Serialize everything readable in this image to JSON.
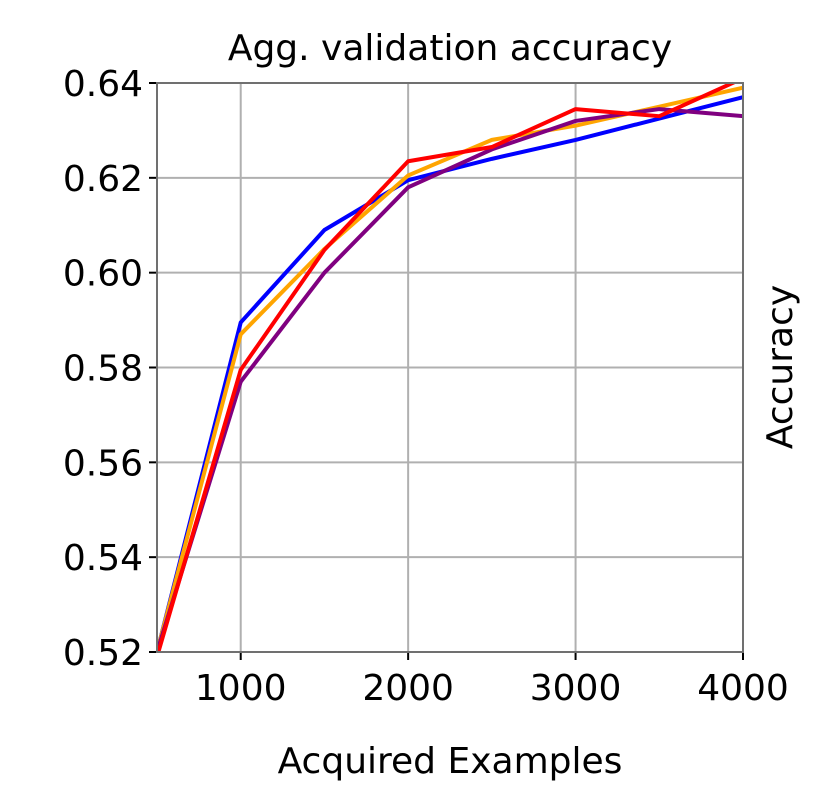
{
  "chart_data": {
    "type": "line",
    "title": "Agg. validation accuracy",
    "xlabel": "Acquired Examples",
    "ylabel": "Accuracy",
    "x": [
      500,
      1000,
      1500,
      2000,
      2500,
      3000,
      3500,
      4000
    ],
    "series": [
      {
        "color": "#0000ff",
        "values": [
          0.52,
          0.5895,
          0.609,
          0.6195,
          0.624,
          0.628,
          0.6325,
          0.637
        ]
      },
      {
        "color": "#ffa500",
        "values": [
          0.52,
          0.587,
          0.605,
          0.6205,
          0.628,
          0.631,
          0.635,
          0.639
        ]
      },
      {
        "color": "#800080",
        "values": [
          0.52,
          0.577,
          0.6,
          0.618,
          0.626,
          0.632,
          0.6345,
          0.633
        ]
      },
      {
        "color": "#ff0000",
        "values": [
          0.519,
          0.5795,
          0.6048,
          0.6235,
          0.6265,
          0.6345,
          0.633,
          0.641
        ]
      }
    ],
    "xlim": [
      500,
      4000
    ],
    "ylim": [
      0.52,
      0.64
    ],
    "xticks": [
      1000,
      2000,
      3000,
      4000
    ],
    "yticks": [
      0.52,
      0.54,
      0.56,
      0.58,
      {
        "value": 0.6,
        "label": "0.60"
      },
      0.62,
      0.64
    ],
    "grid": true
  }
}
